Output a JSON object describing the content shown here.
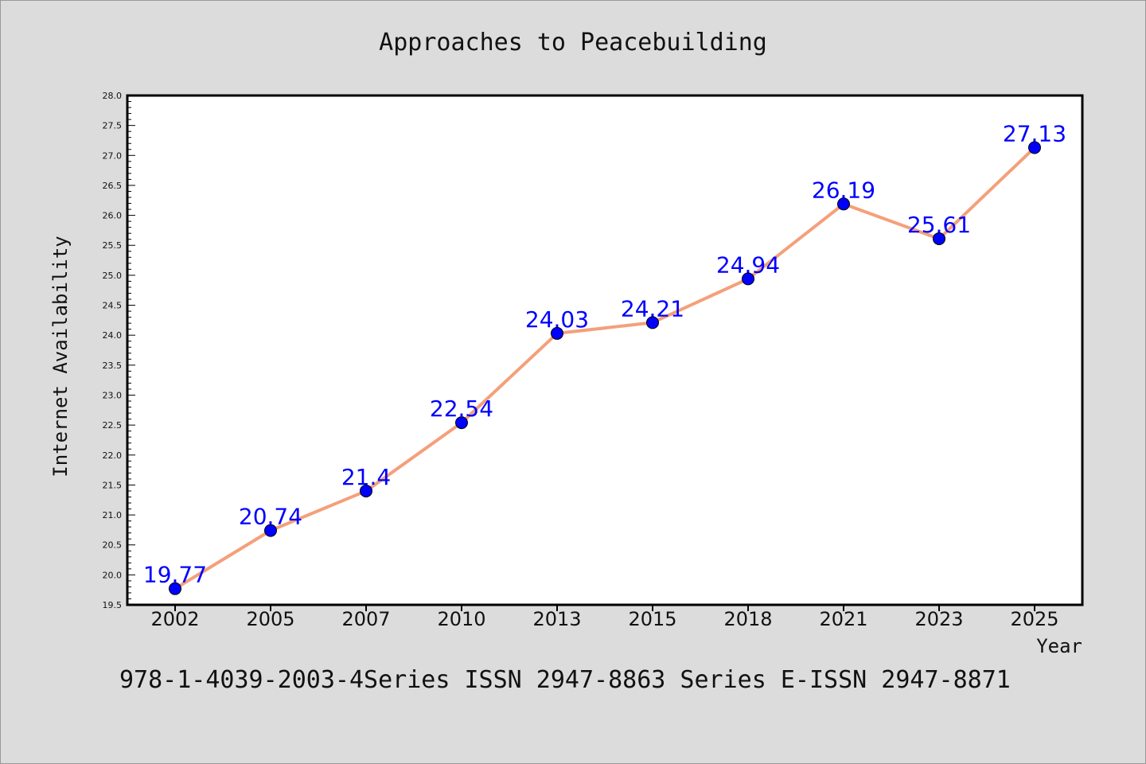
{
  "chart_data": {
    "type": "line",
    "title": "Approaches to Peacebuilding",
    "xlabel": "Year",
    "ylabel": "Internet Availability",
    "categories": [
      "2002",
      "2005",
      "2007",
      "2010",
      "2013",
      "2015",
      "2018",
      "2021",
      "2023",
      "2025"
    ],
    "series": [
      {
        "values": [
          19.77,
          20.74,
          21.4,
          22.54,
          24.03,
          24.21,
          24.94,
          26.19,
          25.61,
          27.13
        ],
        "data_labels": [
          "19.77",
          "20.74",
          "21.4",
          "22.54",
          "24.03",
          "24.21",
          "24.94",
          "26.19",
          "25.61",
          "27.13"
        ]
      }
    ],
    "ylim": [
      19.5,
      28.0
    ],
    "yticks": [
      "19.5",
      "20.0",
      "20.5",
      "21.0",
      "21.5",
      "22.0",
      "22.5",
      "23.0",
      "23.5",
      "24.0",
      "24.5",
      "25.0",
      "25.5",
      "26.0",
      "26.5",
      "27.0",
      "27.5",
      "28.0"
    ],
    "grid": false,
    "colors": {
      "line": "#f4a07a",
      "marker": "#0000ff",
      "data_label": "#0000ff",
      "background": "#dcdcdc",
      "plot_background": "#ffffff"
    }
  },
  "footer": "978-1-4039-2003-4Series ISSN 2947-8863 Series E-ISSN 2947-8871"
}
